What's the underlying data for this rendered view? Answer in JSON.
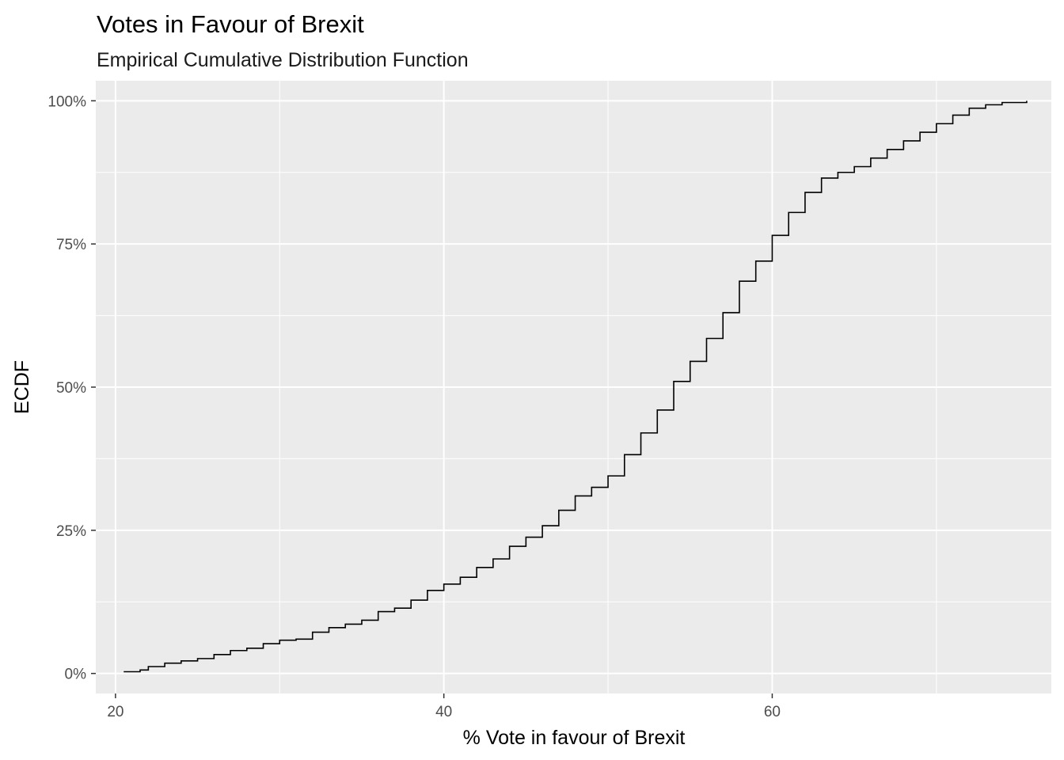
{
  "chart_data": {
    "type": "line",
    "subtype": "step",
    "title": "Votes in Favour of Brexit",
    "subtitle": "Empirical Cumulative Distribution Function",
    "xlabel": "% Vote in favour of Brexit",
    "ylabel": "ECDF",
    "xlim": [
      18.8,
      77.0
    ],
    "ylim": [
      -0.035,
      1.035
    ],
    "x_ticks": [
      20,
      40,
      60
    ],
    "x_tick_labels": [
      "20",
      "40",
      "60"
    ],
    "y_ticks": [
      0,
      0.25,
      0.5,
      0.75,
      1.0
    ],
    "y_tick_labels": [
      "0%",
      "25%",
      "50%",
      "75%",
      "100%"
    ],
    "grid": true,
    "legend": "none",
    "colors": {
      "panel_background": "#ebebeb",
      "grid": "#ffffff",
      "line": "#000000"
    },
    "series": [
      {
        "x": [
          20.5,
          21.5,
          22.0,
          23.0,
          24.0,
          25.0,
          26.0,
          27.0,
          28.0,
          29.0,
          30.0,
          31.0,
          32.0,
          33.0,
          34.0,
          35.0,
          36.0,
          37.0,
          38.0,
          39.0,
          40.0,
          41.0,
          42.0,
          43.0,
          44.0,
          45.0,
          46.0,
          47.0,
          48.0,
          49.0,
          50.0,
          51.0,
          52.0,
          53.0,
          54.0,
          55.0,
          56.0,
          57.0,
          58.0,
          59.0,
          60.0,
          61.0,
          62.0,
          63.0,
          64.0,
          65.0,
          66.0,
          67.0,
          68.0,
          69.0,
          70.0,
          71.0,
          72.0,
          73.0,
          74.0,
          75.5
        ],
        "y": [
          0.003,
          0.006,
          0.012,
          0.018,
          0.022,
          0.026,
          0.033,
          0.04,
          0.044,
          0.052,
          0.058,
          0.06,
          0.072,
          0.08,
          0.086,
          0.093,
          0.108,
          0.114,
          0.128,
          0.145,
          0.156,
          0.168,
          0.185,
          0.2,
          0.222,
          0.238,
          0.258,
          0.285,
          0.31,
          0.325,
          0.345,
          0.382,
          0.42,
          0.46,
          0.51,
          0.545,
          0.585,
          0.63,
          0.685,
          0.72,
          0.765,
          0.805,
          0.84,
          0.865,
          0.875,
          0.885,
          0.9,
          0.915,
          0.93,
          0.945,
          0.96,
          0.975,
          0.987,
          0.993,
          0.997,
          1.0
        ]
      }
    ]
  }
}
